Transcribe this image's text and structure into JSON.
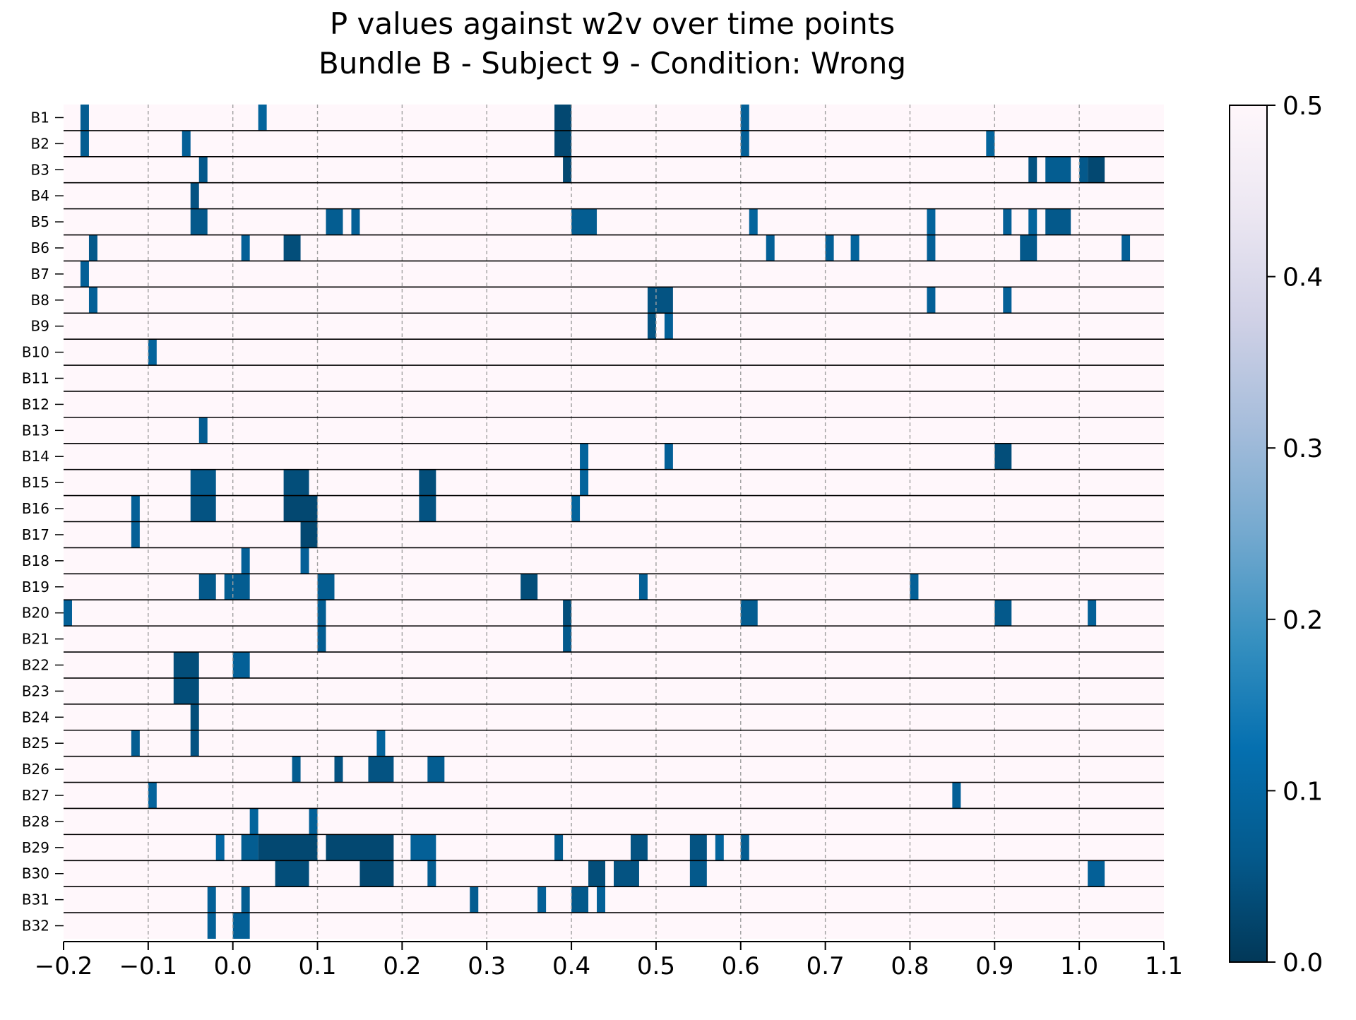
{
  "chart_data": {
    "type": "heatmap",
    "title": "P values against w2v over time points",
    "subtitle": "Bundle B - Subject 9 - Condition: Wrong",
    "xlabel": "",
    "ylabel": "",
    "xlim": [
      -0.2,
      1.1
    ],
    "x_ticks": [
      "−0.2",
      "−0.1",
      "0.0",
      "0.1",
      "0.2",
      "0.3",
      "0.4",
      "0.5",
      "0.6",
      "0.7",
      "0.8",
      "0.9",
      "1.0",
      "1.1"
    ],
    "x_tick_values": [
      -0.2,
      -0.1,
      0.0,
      0.1,
      0.2,
      0.3,
      0.4,
      0.5,
      0.6,
      0.7,
      0.8,
      0.9,
      1.0,
      1.1
    ],
    "grid": "vertical dashed at x ticks",
    "colorbar": {
      "range": [
        0.0,
        0.5
      ],
      "ticks": [
        "0.0",
        "0.1",
        "0.2",
        "0.3",
        "0.4",
        "0.5"
      ],
      "tick_values": [
        0.0,
        0.1,
        0.2,
        0.3,
        0.4,
        0.5
      ],
      "colormap": "PuBu_r"
    },
    "background_value": 0.5,
    "rows": [
      {
        "label": "B1",
        "cells": [
          [
            -0.18,
            -0.17,
            0.07
          ],
          [
            0.03,
            0.04,
            0.09
          ],
          [
            0.38,
            0.4,
            0.03
          ],
          [
            0.6,
            0.61,
            0.08
          ]
        ]
      },
      {
        "label": "B2",
        "cells": [
          [
            -0.18,
            -0.17,
            0.07
          ],
          [
            -0.06,
            -0.05,
            0.08
          ],
          [
            0.38,
            0.4,
            0.03
          ],
          [
            0.6,
            0.61,
            0.08
          ],
          [
            0.89,
            0.9,
            0.09
          ]
        ]
      },
      {
        "label": "B3",
        "cells": [
          [
            -0.04,
            -0.03,
            0.06
          ],
          [
            0.39,
            0.4,
            0.03
          ],
          [
            0.94,
            0.95,
            0.05
          ],
          [
            0.96,
            0.99,
            0.07
          ],
          [
            1.0,
            1.01,
            0.06
          ],
          [
            1.01,
            1.03,
            0.03
          ]
        ]
      },
      {
        "label": "B4",
        "cells": [
          [
            -0.05,
            -0.04,
            0.05
          ]
        ]
      },
      {
        "label": "B5",
        "cells": [
          [
            -0.05,
            -0.03,
            0.06
          ],
          [
            0.11,
            0.13,
            0.07
          ],
          [
            0.14,
            0.15,
            0.08
          ],
          [
            0.4,
            0.43,
            0.07
          ],
          [
            0.61,
            0.62,
            0.09
          ],
          [
            0.82,
            0.83,
            0.09
          ],
          [
            0.91,
            0.92,
            0.08
          ],
          [
            0.94,
            0.95,
            0.09
          ],
          [
            0.96,
            0.99,
            0.06
          ]
        ]
      },
      {
        "label": "B6",
        "cells": [
          [
            -0.17,
            -0.16,
            0.06
          ],
          [
            0.01,
            0.02,
            0.08
          ],
          [
            0.06,
            0.08,
            0.04
          ],
          [
            0.63,
            0.64,
            0.08
          ],
          [
            0.7,
            0.71,
            0.08
          ],
          [
            0.73,
            0.74,
            0.09
          ],
          [
            0.82,
            0.83,
            0.08
          ],
          [
            0.93,
            0.95,
            0.06
          ],
          [
            1.05,
            1.06,
            0.08
          ]
        ]
      },
      {
        "label": "B7",
        "cells": [
          [
            -0.18,
            -0.17,
            0.08
          ]
        ]
      },
      {
        "label": "B8",
        "cells": [
          [
            -0.17,
            -0.16,
            0.08
          ],
          [
            0.49,
            0.52,
            0.05
          ],
          [
            0.82,
            0.83,
            0.08
          ],
          [
            0.91,
            0.92,
            0.08
          ]
        ]
      },
      {
        "label": "B9",
        "cells": [
          [
            0.49,
            0.5,
            0.05
          ],
          [
            0.51,
            0.52,
            0.08
          ]
        ]
      },
      {
        "label": "B10",
        "cells": [
          [
            -0.1,
            -0.09,
            0.09
          ]
        ]
      },
      {
        "label": "B11",
        "cells": []
      },
      {
        "label": "B12",
        "cells": []
      },
      {
        "label": "B13",
        "cells": [
          [
            -0.04,
            -0.03,
            0.07
          ]
        ]
      },
      {
        "label": "B14",
        "cells": [
          [
            0.41,
            0.42,
            0.09
          ],
          [
            0.51,
            0.52,
            0.08
          ],
          [
            0.9,
            0.92,
            0.04
          ]
        ]
      },
      {
        "label": "B15",
        "cells": [
          [
            -0.05,
            -0.02,
            0.06
          ],
          [
            0.06,
            0.09,
            0.04
          ],
          [
            0.22,
            0.24,
            0.04
          ],
          [
            0.41,
            0.42,
            0.09
          ]
        ]
      },
      {
        "label": "B16",
        "cells": [
          [
            -0.12,
            -0.11,
            0.08
          ],
          [
            -0.05,
            -0.02,
            0.05
          ],
          [
            0.06,
            0.1,
            0.03
          ],
          [
            0.22,
            0.24,
            0.05
          ],
          [
            0.4,
            0.41,
            0.09
          ]
        ]
      },
      {
        "label": "B17",
        "cells": [
          [
            -0.12,
            -0.11,
            0.08
          ],
          [
            0.08,
            0.1,
            0.03
          ]
        ]
      },
      {
        "label": "B18",
        "cells": [
          [
            0.01,
            0.02,
            0.08
          ],
          [
            0.08,
            0.09,
            0.08
          ]
        ]
      },
      {
        "label": "B19",
        "cells": [
          [
            -0.04,
            -0.02,
            0.06
          ],
          [
            -0.01,
            0.02,
            0.07
          ],
          [
            0.1,
            0.12,
            0.07
          ],
          [
            0.34,
            0.36,
            0.04
          ],
          [
            0.48,
            0.49,
            0.08
          ],
          [
            0.8,
            0.81,
            0.08
          ]
        ]
      },
      {
        "label": "B20",
        "cells": [
          [
            -0.2,
            -0.19,
            0.08
          ],
          [
            0.1,
            0.11,
            0.07
          ],
          [
            0.39,
            0.4,
            0.04
          ],
          [
            0.6,
            0.62,
            0.07
          ],
          [
            0.9,
            0.92,
            0.06
          ],
          [
            1.01,
            1.02,
            0.08
          ]
        ]
      },
      {
        "label": "B21",
        "cells": [
          [
            0.1,
            0.11,
            0.07
          ],
          [
            0.39,
            0.4,
            0.06
          ]
        ]
      },
      {
        "label": "B22",
        "cells": [
          [
            -0.07,
            -0.04,
            0.04
          ],
          [
            0.0,
            0.02,
            0.08
          ]
        ]
      },
      {
        "label": "B23",
        "cells": [
          [
            -0.07,
            -0.04,
            0.04
          ]
        ]
      },
      {
        "label": "B24",
        "cells": [
          [
            -0.05,
            -0.04,
            0.04
          ]
        ]
      },
      {
        "label": "B25",
        "cells": [
          [
            -0.12,
            -0.11,
            0.07
          ],
          [
            -0.05,
            -0.04,
            0.05
          ],
          [
            0.17,
            0.18,
            0.09
          ]
        ]
      },
      {
        "label": "B26",
        "cells": [
          [
            0.07,
            0.08,
            0.07
          ],
          [
            0.12,
            0.13,
            0.05
          ],
          [
            0.16,
            0.19,
            0.05
          ],
          [
            0.23,
            0.25,
            0.07
          ]
        ]
      },
      {
        "label": "B27",
        "cells": [
          [
            -0.1,
            -0.09,
            0.09
          ],
          [
            0.85,
            0.86,
            0.08
          ]
        ]
      },
      {
        "label": "B28",
        "cells": [
          [
            0.02,
            0.03,
            0.09
          ],
          [
            0.09,
            0.1,
            0.08
          ]
        ]
      },
      {
        "label": "B29",
        "cells": [
          [
            -0.02,
            -0.01,
            0.1
          ],
          [
            0.01,
            0.03,
            0.07
          ],
          [
            0.03,
            0.1,
            0.03
          ],
          [
            0.11,
            0.19,
            0.03
          ],
          [
            0.21,
            0.24,
            0.08
          ],
          [
            0.38,
            0.39,
            0.07
          ],
          [
            0.47,
            0.49,
            0.05
          ],
          [
            0.54,
            0.56,
            0.05
          ],
          [
            0.57,
            0.58,
            0.09
          ],
          [
            0.6,
            0.61,
            0.07
          ]
        ]
      },
      {
        "label": "B30",
        "cells": [
          [
            0.05,
            0.09,
            0.04
          ],
          [
            0.15,
            0.19,
            0.03
          ],
          [
            0.23,
            0.24,
            0.07
          ],
          [
            0.42,
            0.44,
            0.04
          ],
          [
            0.45,
            0.48,
            0.05
          ],
          [
            0.54,
            0.56,
            0.06
          ],
          [
            1.01,
            1.03,
            0.08
          ]
        ]
      },
      {
        "label": "B31",
        "cells": [
          [
            -0.03,
            -0.02,
            0.08
          ],
          [
            0.01,
            0.02,
            0.07
          ],
          [
            0.28,
            0.29,
            0.07
          ],
          [
            0.36,
            0.37,
            0.08
          ],
          [
            0.4,
            0.42,
            0.06
          ],
          [
            0.43,
            0.44,
            0.08
          ]
        ]
      },
      {
        "label": "B32",
        "cells": [
          [
            -0.03,
            -0.02,
            0.08
          ],
          [
            0.0,
            0.02,
            0.08
          ]
        ]
      }
    ]
  }
}
